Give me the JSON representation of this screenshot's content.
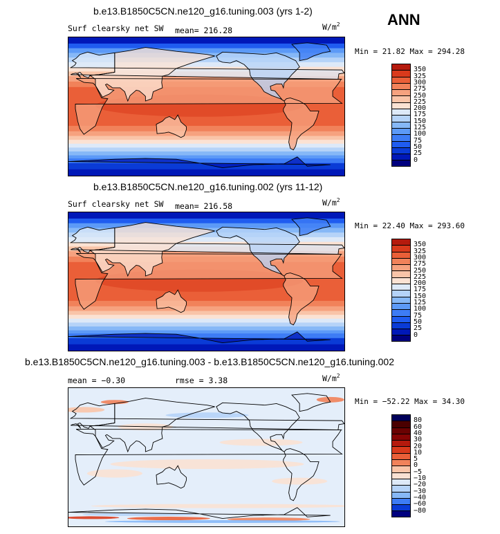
{
  "season": "ANN",
  "units_base": "W/m",
  "units_exp": "2",
  "panels": [
    {
      "title": "b.e13.B1850C5CN.ne120_g16.tuning.003 (yrs 1-2)",
      "field": "Surf clearsky net SW",
      "stats": "mean= 216.28",
      "minmax": "Min =  21.82 Max = 294.28"
    },
    {
      "title": "b.e13.B1850C5CN.ne120_g16.tuning.002 (yrs 11-12)",
      "field": "Surf clearsky net SW",
      "stats": "mean= 216.58",
      "minmax": "Min =  22.40 Max = 293.60"
    },
    {
      "title": "b.e13.B1850C5CN.ne120_g16.tuning.003 - b.e13.B1850C5CN.ne120_g16.tuning.002",
      "stats_mean": "mean =  −0.30",
      "stats_rmse": "rmse =   3.38",
      "minmax": "Min = −52.22 Max =  34.30"
    }
  ],
  "colors": {
    "abs": [
      "#00007f",
      "#0018b8",
      "#0a3bd6",
      "#1f5cf0",
      "#3d7cf5",
      "#5c9af7",
      "#86b8f7",
      "#b5d3f8",
      "#dde9f8",
      "#fbe2d3",
      "#f9c4a8",
      "#f6a27f",
      "#f1825a",
      "#ea5f38",
      "#d93a1c",
      "#b51a0d",
      "#850404"
    ],
    "diff": [
      "#00007f",
      "#0a3bd6",
      "#3d7cf5",
      "#86b8f7",
      "#b5d3f8",
      "#dde9f8",
      "#f9e1d3",
      "#f9c4a8",
      "#f1825a",
      "#ea5f38",
      "#d93a1c",
      "#b51a0d",
      "#850404"
    ]
  },
  "chart_data": [
    {
      "type": "heatmap",
      "title": "b.e13.B1850C5CN.ne120_g16.tuning.003 (yrs 1-2)",
      "variable": "Surf clearsky net SW",
      "units": "W/m2",
      "mean": 216.28,
      "min": 21.82,
      "max": 294.28,
      "colorbar_levels": [
        0,
        25,
        50,
        75,
        100,
        125,
        150,
        175,
        200,
        225,
        250,
        275,
        300,
        325,
        350
      ]
    },
    {
      "type": "heatmap",
      "title": "b.e13.B1850C5CN.ne120_g16.tuning.002 (yrs 11-12)",
      "variable": "Surf clearsky net SW",
      "units": "W/m2",
      "mean": 216.58,
      "min": 22.4,
      "max": 293.6,
      "colorbar_levels": [
        0,
        25,
        50,
        75,
        100,
        125,
        150,
        175,
        200,
        225,
        250,
        275,
        300,
        325,
        350
      ]
    },
    {
      "type": "heatmap",
      "title": "b.e13.B1850C5CN.ne120_g16.tuning.003 - b.e13.B1850C5CN.ne120_g16.tuning.002",
      "units": "W/m2",
      "mean": -0.3,
      "rmse": 3.38,
      "min": -52.22,
      "max": 34.3,
      "colorbar_levels": [
        -80,
        -60,
        -40,
        -30,
        -20,
        -10,
        -5,
        0,
        5,
        10,
        20,
        30,
        40,
        60,
        80
      ]
    }
  ],
  "colorbar_labels": {
    "abs": [
      "350",
      "325",
      "300",
      "275",
      "250",
      "225",
      "200",
      "175",
      "150",
      "125",
      "100",
      "75",
      "50",
      "25",
      "0"
    ],
    "diff": [
      "80",
      "60",
      "40",
      "30",
      "20",
      "10",
      "5",
      "0",
      "−5",
      "−10",
      "−20",
      "−30",
      "−40",
      "−60",
      "−80"
    ]
  }
}
